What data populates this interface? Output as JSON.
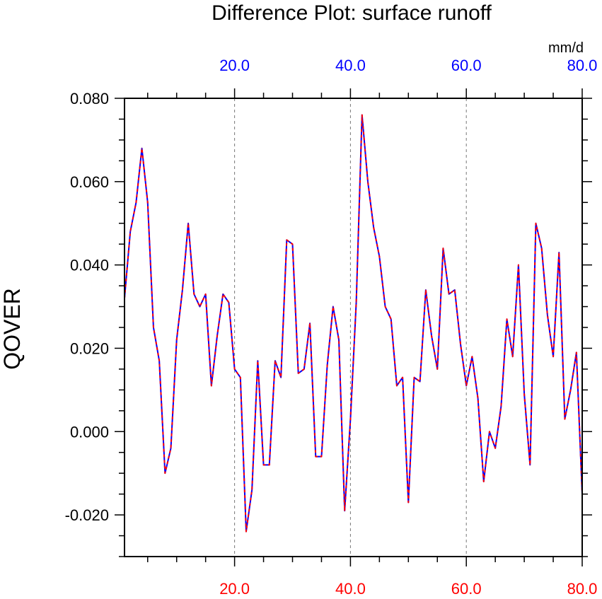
{
  "chart_data": {
    "type": "line",
    "title": "Difference Plot: surface runoff",
    "ylabel": "QOVER",
    "units": "mm/d",
    "xlim": [
      1,
      80
    ],
    "ylim": [
      -0.03,
      0.08
    ],
    "x_ticks": [
      20,
      40,
      60,
      80
    ],
    "x_tick_labels_bottom": [
      "20.0",
      "40.0",
      "60.0",
      "80.0"
    ],
    "x_tick_labels_top": [
      "20.0",
      "40.0",
      "60.0",
      "80.0"
    ],
    "y_ticks": [
      -0.02,
      0.0,
      0.02,
      0.04,
      0.06,
      0.08
    ],
    "y_tick_labels": [
      "-0.020",
      "0.000",
      "0.020",
      "0.040",
      "0.060",
      "0.080"
    ],
    "vertical_reference_lines": [
      20,
      40,
      60
    ],
    "colors": {
      "bottom_axis_labels": "#ff0000",
      "top_axis_labels": "#0000ff",
      "series_solid": "#0000ff",
      "series_dashed": "#ff0000",
      "reference_lines": "#777777"
    },
    "grid": false,
    "series": [
      {
        "x": [
          1,
          2,
          3,
          4,
          5,
          6,
          7,
          8,
          9,
          10,
          11,
          12,
          13,
          14,
          15,
          16,
          17,
          18,
          19,
          20,
          21,
          22,
          23,
          24,
          25,
          26,
          27,
          28,
          29,
          30,
          31,
          32,
          33,
          34,
          35,
          36,
          37,
          38,
          39,
          40,
          41,
          42,
          43,
          44,
          45,
          46,
          47,
          48,
          49,
          50,
          51,
          52,
          53,
          54,
          55,
          56,
          57,
          58,
          59,
          60,
          61,
          62,
          63,
          64,
          65,
          66,
          67,
          68,
          69,
          70,
          71,
          72,
          73,
          74,
          75,
          76,
          77,
          78,
          79,
          80
        ],
        "values": [
          0.032,
          0.048,
          0.055,
          0.068,
          0.055,
          0.025,
          0.017,
          -0.01,
          -0.004,
          0.022,
          0.034,
          0.05,
          0.033,
          0.03,
          0.033,
          0.011,
          0.023,
          0.033,
          0.031,
          0.015,
          0.013,
          -0.024,
          -0.014,
          0.017,
          -0.008,
          -0.008,
          0.017,
          0.013,
          0.046,
          0.045,
          0.014,
          0.015,
          0.026,
          -0.006,
          -0.006,
          0.016,
          0.03,
          0.022,
          -0.019,
          0.003,
          0.031,
          0.076,
          0.06,
          0.049,
          0.042,
          0.03,
          0.027,
          0.011,
          0.013,
          -0.017,
          0.013,
          0.012,
          0.034,
          0.023,
          0.015,
          0.044,
          0.033,
          0.034,
          0.021,
          0.011,
          0.018,
          0.008,
          -0.012,
          0.0,
          -0.004,
          0.006,
          0.027,
          0.018,
          0.04,
          0.009,
          -0.008,
          0.05,
          0.044,
          0.028,
          0.018,
          0.043,
          0.003,
          0.01,
          0.019,
          -0.015
        ]
      }
    ]
  }
}
